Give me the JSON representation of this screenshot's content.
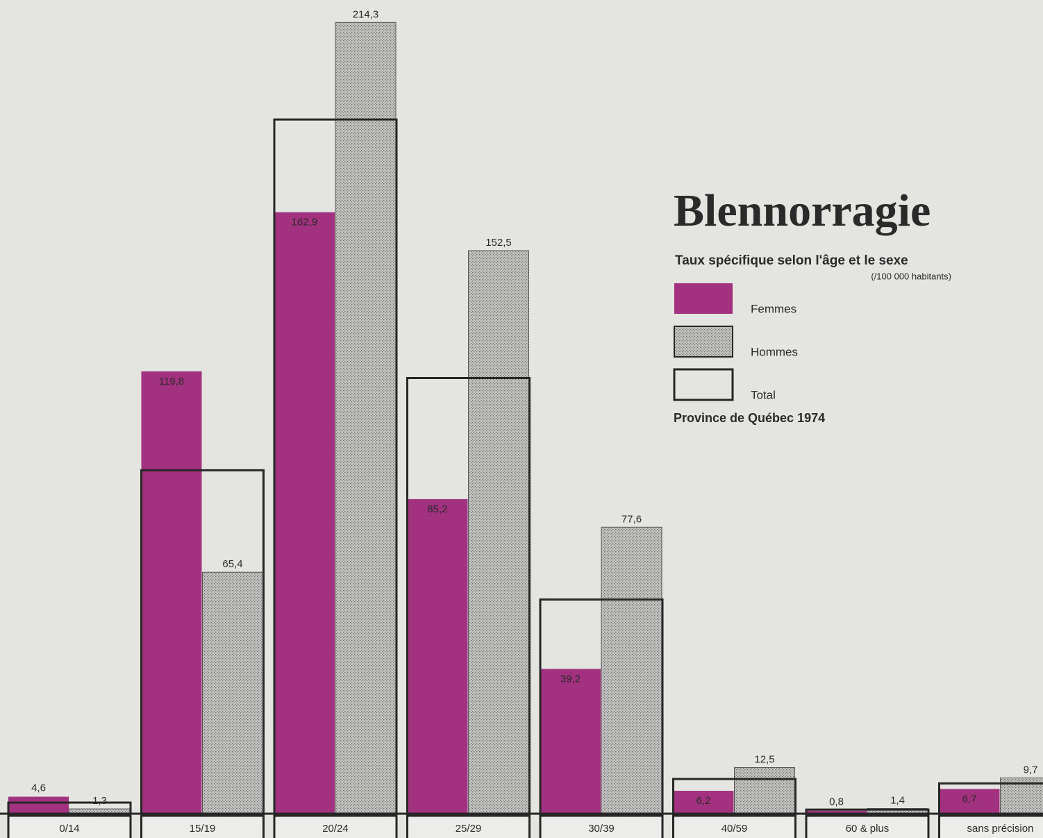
{
  "chart_data": {
    "type": "bar",
    "title": "Blennorragie",
    "subtitle": "Taux spécifique selon l'âge et le sexe",
    "unit_note": "(/100 000 habitants)",
    "source": "Province de Québec 1974",
    "categories": [
      "0/14",
      "15/19",
      "20/24",
      "25/29",
      "30/39",
      "40/59",
      "60 & plus",
      "sans précision"
    ],
    "ylim": [
      0,
      220
    ],
    "series": [
      {
        "name": "Femmes",
        "color": "#a2317f",
        "values": [
          4.6,
          119.8,
          162.9,
          85.2,
          39.2,
          6.2,
          0.8,
          6.7
        ],
        "value_labels": [
          "4,6",
          "119,8",
          "162,9",
          "85,2",
          "39,2",
          "6,2",
          "0,8",
          "6,7"
        ]
      },
      {
        "name": "Hommes",
        "color": "#c4c4c2",
        "values": [
          1.3,
          65.4,
          214.3,
          152.5,
          77.6,
          12.5,
          1.4,
          9.7
        ],
        "value_labels": [
          "1,3",
          "65,4",
          "214,3",
          "152,5",
          "77,6",
          "12,5",
          "1,4",
          "9,7"
        ]
      },
      {
        "name": "Total",
        "color": "#262626",
        "values": [
          3.0,
          93,
          188,
          118,
          58,
          9.4,
          1.1,
          8.2
        ]
      }
    ]
  }
}
